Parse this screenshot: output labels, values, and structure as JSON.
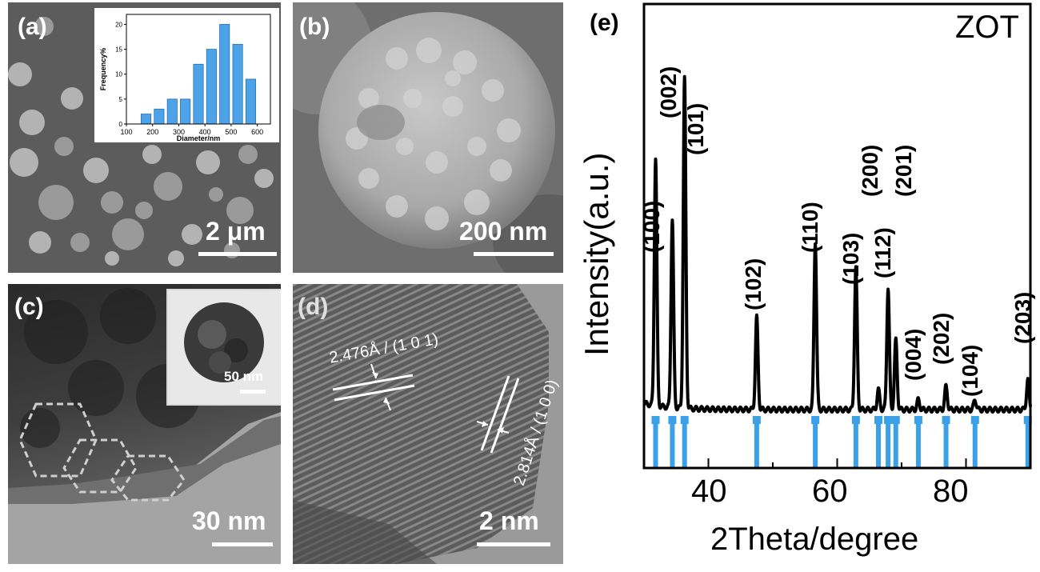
{
  "panels": {
    "a": {
      "label": "(a)",
      "scalebar": "2 μm",
      "inset": {
        "xlabel": "Diameter/nm",
        "ylabel": "Frequency%",
        "xticks": [
          "100",
          "200",
          "300",
          "400",
          "500",
          "600"
        ],
        "yticks": [
          "0",
          "5",
          "10",
          "15",
          "20"
        ]
      }
    },
    "b": {
      "label": "(b)",
      "scalebar": "200 nm"
    },
    "c": {
      "label": "(c)",
      "scalebar": "30 nm",
      "inset_scalebar": "50 nm"
    },
    "d": {
      "label": "(d)",
      "scalebar": "2 nm",
      "spacing1": "2.476Å / (1 0 1)",
      "spacing2": "2.814Å / (1 0 0)"
    },
    "e": {
      "label": "(e)",
      "sample": "ZOT",
      "xlabel": "2Theta/degree",
      "ylabel": "Intensity(a.u.)",
      "xticks": [
        "40",
        "60",
        "80"
      ],
      "colors": {
        "curve": "#000000",
        "reference": "#3aa0e8"
      }
    }
  },
  "chart_data": [
    {
      "type": "bar",
      "panel": "a-inset",
      "xlabel": "Diameter/nm",
      "ylabel": "Frequency%",
      "categories": [
        175,
        225,
        275,
        325,
        375,
        425,
        475,
        525,
        575
      ],
      "values": [
        2,
        3,
        5,
        5,
        12,
        15,
        20,
        16,
        9
      ],
      "xlim": [
        100,
        650
      ],
      "ylim": [
        0,
        22
      ]
    },
    {
      "type": "line",
      "panel": "e",
      "xlabel": "2Theta/degree",
      "ylabel": "Intensity(a.u.)",
      "xlim": [
        30,
        90
      ],
      "peaks": [
        {
          "label": "(100)",
          "x": 31.8,
          "height": 0.75
        },
        {
          "label": "(002)",
          "x": 34.4,
          "height": 0.57
        },
        {
          "label": "(101)",
          "x": 36.3,
          "height": 1.0
        },
        {
          "label": "(102)",
          "x": 47.5,
          "height": 0.28
        },
        {
          "label": "(110)",
          "x": 56.6,
          "height": 0.51
        },
        {
          "label": "(103)",
          "x": 62.9,
          "height": 0.43
        },
        {
          "label": "(200)",
          "x": 66.4,
          "height": 0.06
        },
        {
          "label": "(112)",
          "x": 67.9,
          "height": 0.37
        },
        {
          "label": "(201)",
          "x": 69.1,
          "height": 0.21
        },
        {
          "label": "(004)",
          "x": 72.6,
          "height": 0.03
        },
        {
          "label": "(202)",
          "x": 76.9,
          "height": 0.07
        },
        {
          "label": "(104)",
          "x": 81.4,
          "height": 0.03
        },
        {
          "label": "(203)",
          "x": 89.6,
          "height": 0.09
        }
      ],
      "reference_lines": [
        31.8,
        34.4,
        36.3,
        47.5,
        56.6,
        62.9,
        66.4,
        67.9,
        69.1,
        72.6,
        76.9,
        81.4,
        89.6
      ]
    }
  ]
}
